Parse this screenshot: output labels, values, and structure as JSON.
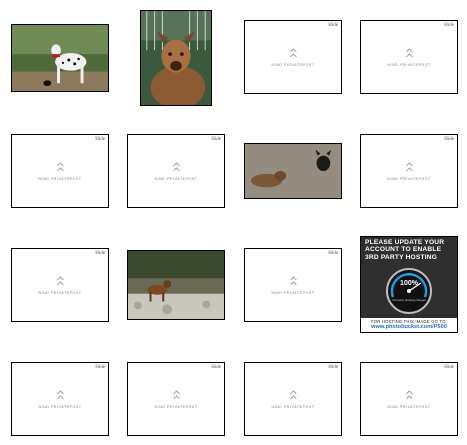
{
  "tiles": {
    "hide_label": "Hide",
    "placeholder_text": "NIND PRIVATEPOST"
  },
  "ad": {
    "headline": "PLEASE UPDATE YOUR ACCOUNT TO ENABLE 3RD PARTY HOSTING",
    "gauge_value": "100%",
    "gauge_caption": "3rd party hosting charges",
    "footer_line": "FOR HOSTING THIS IMAGE GO TO:",
    "footer_url": "www.photobucket.com/P500",
    "accent_color": "#1aa3e8"
  },
  "photos": [
    {
      "name": "dalmatian-photo"
    },
    {
      "name": "brown-dog-photo"
    },
    {
      "name": "dogs-on-floor-photo"
    },
    {
      "name": "dog-in-field-photo"
    }
  ]
}
